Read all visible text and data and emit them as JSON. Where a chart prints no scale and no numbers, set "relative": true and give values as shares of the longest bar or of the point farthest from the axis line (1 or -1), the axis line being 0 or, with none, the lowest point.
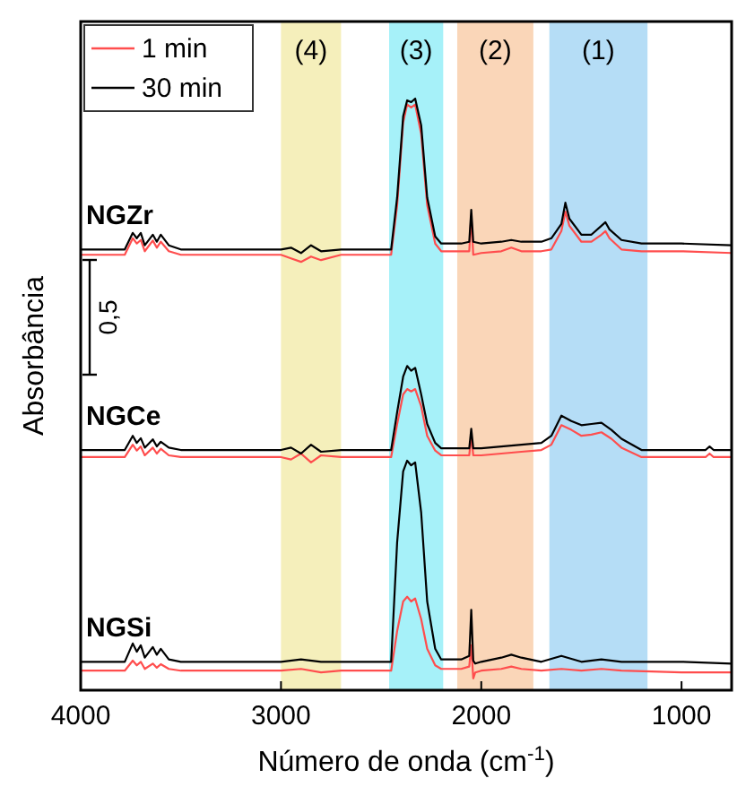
{
  "chart_data": {
    "type": "line",
    "relative": true,
    "xlabel": "Número de onda (cm$^{-1}$)",
    "ylabel": "Absorbância",
    "xlim": [
      4000,
      750
    ],
    "xticks": [
      4000,
      3000,
      2000,
      1000
    ],
    "legend": "top left",
    "grid": false,
    "marker": "none",
    "line_style": "solid",
    "bands": [
      {
        "axis": "x",
        "from": 3000,
        "to": 2700,
        "label": "(4)",
        "color": "#f5efbb"
      },
      {
        "axis": "x",
        "from": 2460,
        "to": 2190,
        "label": "(3)",
        "color": "#a6f1f9"
      },
      {
        "axis": "x",
        "from": 2120,
        "to": 1740,
        "label": "(2)",
        "color": "#fad6b8"
      },
      {
        "axis": "x",
        "from": 1660,
        "to": 1170,
        "label": "(1)",
        "color": "#b5ddf6"
      }
    ],
    "annotations": [
      "NGZr",
      "NGCe",
      "NGSi",
      "0,5"
    ],
    "series": [
      {
        "name": "1 min",
        "color": "#ff4d4d",
        "x": [
          4000,
          3780,
          3740,
          3720,
          3700,
          3680,
          3640,
          3620,
          3600,
          3560,
          3500,
          3000,
          2950,
          2900,
          2850,
          2800,
          2700,
          2450,
          2420,
          2390,
          2370,
          2350,
          2330,
          2300,
          2270,
          2230,
          2200,
          2100,
          2060,
          2050,
          2040,
          2000,
          1900,
          1850,
          1800,
          1700,
          1650,
          1600,
          1580,
          1560,
          1500,
          1450,
          1400,
          1380,
          1360,
          1300,
          1200,
          1000,
          750
        ],
        "values": [
          0.736,
          0.736,
          0.764,
          0.755,
          0.761,
          0.742,
          0.76,
          0.748,
          0.758,
          0.742,
          0.736,
          0.736,
          0.73,
          0.724,
          0.733,
          0.727,
          0.736,
          0.736,
          0.82,
          0.96,
          0.99,
          0.985,
          0.99,
          0.94,
          0.82,
          0.755,
          0.742,
          0.742,
          0.742,
          0.803,
          0.736,
          0.739,
          0.742,
          0.748,
          0.742,
          0.742,
          0.745,
          0.776,
          0.809,
          0.785,
          0.758,
          0.758,
          0.77,
          0.776,
          0.764,
          0.745,
          0.742,
          0.742,
          0.739
        ]
      },
      {
        "name": "30 min",
        "color": "#000000",
        "x": [
          4000,
          3780,
          3740,
          3720,
          3700,
          3680,
          3640,
          3620,
          3600,
          3560,
          3500,
          3000,
          2950,
          2900,
          2850,
          2800,
          2700,
          2450,
          2420,
          2390,
          2370,
          2350,
          2330,
          2300,
          2270,
          2230,
          2200,
          2100,
          2060,
          2050,
          2040,
          2000,
          1900,
          1850,
          1800,
          1700,
          1650,
          1600,
          1580,
          1560,
          1500,
          1450,
          1400,
          1380,
          1360,
          1300,
          1200,
          1000,
          750
        ],
        "values": [
          0.745,
          0.745,
          0.773,
          0.764,
          0.773,
          0.752,
          0.77,
          0.758,
          0.77,
          0.752,
          0.745,
          0.745,
          0.748,
          0.739,
          0.752,
          0.742,
          0.745,
          0.745,
          0.833,
          0.97,
          0.997,
          0.994,
          1.0,
          0.955,
          0.833,
          0.767,
          0.755,
          0.755,
          0.758,
          0.812,
          0.758,
          0.755,
          0.758,
          0.761,
          0.758,
          0.758,
          0.764,
          0.788,
          0.824,
          0.797,
          0.77,
          0.77,
          0.785,
          0.791,
          0.779,
          0.761,
          0.755,
          0.755,
          0.752
        ]
      },
      {
        "color": "#ff4d4d",
        "x": [
          4000,
          3780,
          3740,
          3720,
          3700,
          3680,
          3640,
          3620,
          3600,
          3560,
          3500,
          3000,
          2950,
          2900,
          2850,
          2800,
          2700,
          2450,
          2420,
          2390,
          2370,
          2350,
          2330,
          2300,
          2270,
          2230,
          2200,
          2100,
          2060,
          2050,
          2040,
          2000,
          1900,
          1800,
          1700,
          1650,
          1600,
          1550,
          1500,
          1450,
          1400,
          1350,
          1300,
          1200,
          1000,
          880,
          860,
          840,
          750
        ],
        "values": [
          0.394,
          0.394,
          0.415,
          0.405,
          0.412,
          0.397,
          0.41,
          0.4,
          0.408,
          0.397,
          0.394,
          0.394,
          0.39,
          0.4,
          0.385,
          0.397,
          0.394,
          0.394,
          0.45,
          0.5,
          0.509,
          0.505,
          0.509,
          0.48,
          0.43,
          0.405,
          0.397,
          0.397,
          0.397,
          0.43,
          0.397,
          0.397,
          0.4,
          0.403,
          0.406,
          0.415,
          0.448,
          0.44,
          0.43,
          0.432,
          0.436,
          0.425,
          0.41,
          0.394,
          0.394,
          0.394,
          0.4,
          0.394,
          0.394
        ]
      },
      {
        "color": "#000000",
        "x": [
          4000,
          3780,
          3740,
          3720,
          3700,
          3680,
          3640,
          3620,
          3600,
          3560,
          3500,
          3000,
          2950,
          2900,
          2850,
          2800,
          2700,
          2450,
          2420,
          2390,
          2370,
          2350,
          2330,
          2300,
          2270,
          2230,
          2200,
          2100,
          2060,
          2050,
          2040,
          2000,
          1900,
          1800,
          1700,
          1650,
          1600,
          1550,
          1500,
          1450,
          1400,
          1350,
          1300,
          1200,
          1000,
          880,
          860,
          840,
          750
        ],
        "values": [
          0.406,
          0.406,
          0.43,
          0.418,
          0.426,
          0.41,
          0.424,
          0.412,
          0.42,
          0.41,
          0.406,
          0.406,
          0.41,
          0.4,
          0.415,
          0.403,
          0.406,
          0.406,
          0.47,
          0.53,
          0.548,
          0.54,
          0.545,
          0.5,
          0.45,
          0.418,
          0.409,
          0.409,
          0.409,
          0.442,
          0.409,
          0.409,
          0.412,
          0.415,
          0.418,
          0.43,
          0.464,
          0.455,
          0.448,
          0.45,
          0.452,
          0.44,
          0.425,
          0.406,
          0.406,
          0.406,
          0.412,
          0.406,
          0.406
        ]
      },
      {
        "color": "#ff4d4d",
        "x": [
          4000,
          3780,
          3740,
          3720,
          3700,
          3680,
          3640,
          3620,
          3600,
          3560,
          3500,
          3000,
          2900,
          2800,
          2700,
          2450,
          2420,
          2390,
          2370,
          2350,
          2330,
          2300,
          2270,
          2230,
          2200,
          2100,
          2060,
          2050,
          2040,
          2030,
          2000,
          1900,
          1850,
          1800,
          1700,
          1600,
          1500,
          1400,
          1300,
          1000,
          750
        ],
        "values": [
          0.033,
          0.033,
          0.05,
          0.042,
          0.048,
          0.036,
          0.045,
          0.038,
          0.044,
          0.036,
          0.033,
          0.033,
          0.036,
          0.03,
          0.033,
          0.033,
          0.1,
          0.15,
          0.158,
          0.15,
          0.155,
          0.12,
          0.07,
          0.042,
          0.036,
          0.036,
          0.04,
          0.076,
          0.02,
          0.03,
          0.033,
          0.036,
          0.04,
          0.036,
          0.033,
          0.036,
          0.033,
          0.036,
          0.033,
          0.03,
          0.03
        ]
      },
      {
        "color": "#000000",
        "x": [
          4000,
          3780,
          3740,
          3720,
          3700,
          3680,
          3640,
          3620,
          3600,
          3560,
          3500,
          3000,
          2900,
          2800,
          2700,
          2450,
          2420,
          2390,
          2370,
          2350,
          2330,
          2300,
          2270,
          2230,
          2200,
          2100,
          2060,
          2050,
          2040,
          2030,
          2000,
          1900,
          1850,
          1800,
          1700,
          1600,
          1500,
          1400,
          1300,
          1000,
          750
        ],
        "values": [
          0.048,
          0.048,
          0.079,
          0.065,
          0.076,
          0.055,
          0.073,
          0.06,
          0.07,
          0.052,
          0.048,
          0.048,
          0.052,
          0.048,
          0.048,
          0.048,
          0.25,
          0.37,
          0.388,
          0.38,
          0.385,
          0.3,
          0.15,
          0.07,
          0.052,
          0.052,
          0.058,
          0.136,
          0.05,
          0.045,
          0.048,
          0.055,
          0.06,
          0.055,
          0.048,
          0.058,
          0.048,
          0.052,
          0.048,
          0.048,
          0.045
        ]
      }
    ]
  }
}
